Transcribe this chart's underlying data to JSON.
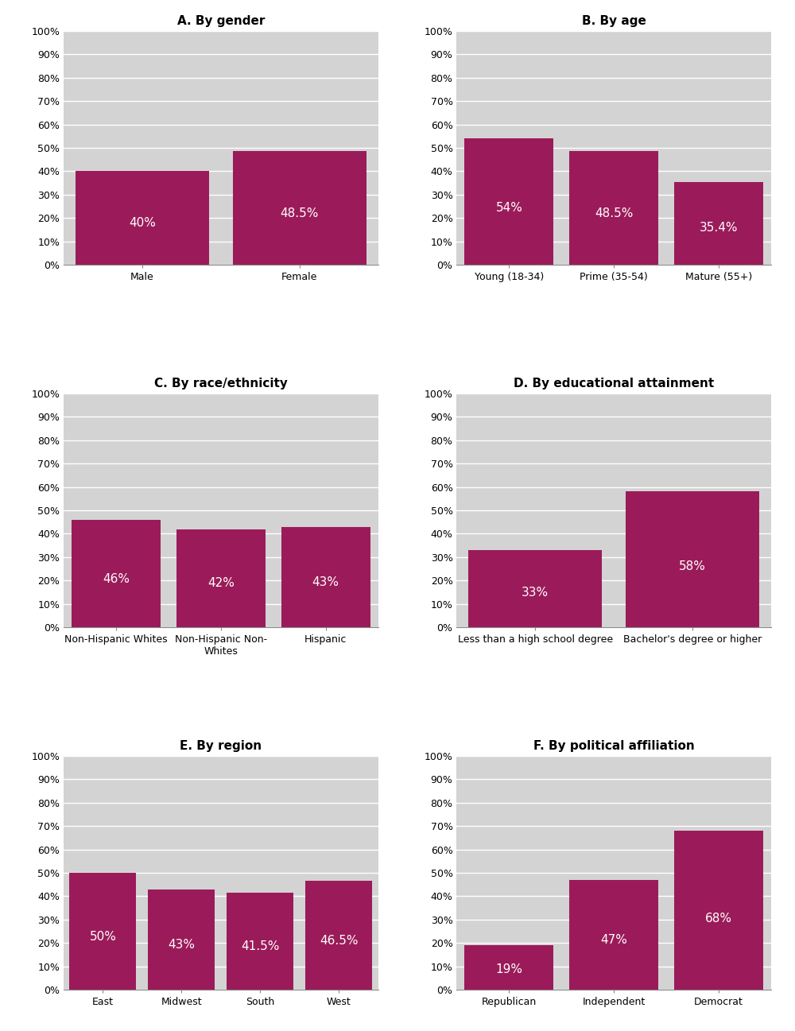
{
  "panels": [
    {
      "title": "A. By gender",
      "categories": [
        "Male",
        "Female"
      ],
      "values": [
        40,
        48.5
      ],
      "labels": [
        "40%",
        "48.5%"
      ]
    },
    {
      "title": "B. By age",
      "categories": [
        "Young (18-34)",
        "Prime (35-54)",
        "Mature (55+)"
      ],
      "values": [
        54,
        48.5,
        35.4
      ],
      "labels": [
        "54%",
        "48.5%",
        "35.4%"
      ]
    },
    {
      "title": "C. By race/ethnicity",
      "categories": [
        "Non-Hispanic Whites",
        "Non-Hispanic Non-\nWhites",
        "Hispanic"
      ],
      "values": [
        46,
        42,
        43
      ],
      "labels": [
        "46%",
        "42%",
        "43%"
      ]
    },
    {
      "title": "D. By educational attainment",
      "categories": [
        "Less than a high school degree",
        "Bachelor's degree or higher"
      ],
      "values": [
        33,
        58
      ],
      "labels": [
        "33%",
        "58%"
      ]
    },
    {
      "title": "E. By region",
      "categories": [
        "East",
        "Midwest",
        "South",
        "West"
      ],
      "values": [
        50,
        43,
        41.5,
        46.5
      ],
      "labels": [
        "50%",
        "43%",
        "41.5%",
        "46.5%"
      ]
    },
    {
      "title": "F. By political affiliation",
      "categories": [
        "Republican",
        "Independent",
        "Democrat"
      ],
      "values": [
        19,
        47,
        68
      ],
      "labels": [
        "19%",
        "47%",
        "68%"
      ]
    }
  ],
  "bar_color": "#9B1B5A",
  "bg_color": "#D3D3D3",
  "text_color": "#FFFFFF",
  "title_fontsize": 11,
  "label_fontsize": 11,
  "tick_fontsize": 9,
  "yticks": [
    0,
    10,
    20,
    30,
    40,
    50,
    60,
    70,
    80,
    90,
    100
  ],
  "ylim": [
    0,
    100
  ],
  "bar_width": 0.85,
  "grid_color": "#FFFFFF",
  "spine_color": "#888888"
}
